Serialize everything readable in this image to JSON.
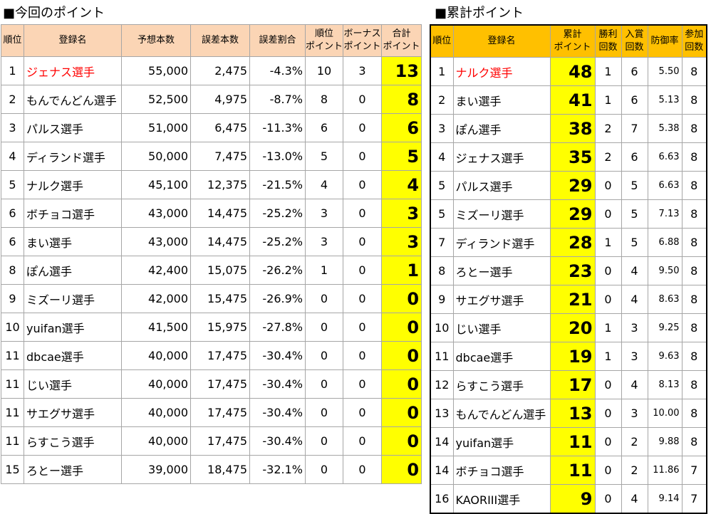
{
  "titles": {
    "current": "■今回のポイント",
    "cumulative": "■累計ポイント"
  },
  "colors": {
    "current_header_bg": "#fbd5b5",
    "cumulative_header_bg": "#ffc000",
    "points_highlight": "#ffff00",
    "highlight_name": "#ff0000"
  },
  "current_table": {
    "headers": [
      {
        "text": "順位"
      },
      {
        "text": "登録名"
      },
      {
        "text": "予想本数"
      },
      {
        "text": "誤差本数"
      },
      {
        "text": "誤差割合"
      },
      {
        "l1": "順位",
        "l2": "ポイント"
      },
      {
        "l1": "ボーナス",
        "l2": "ポイント"
      },
      {
        "l1": "合計",
        "l2": "ポイント"
      }
    ],
    "rows": [
      {
        "rank": "1",
        "name": "ジェナス選手",
        "forecast": "55,000",
        "error": "2,475",
        "ratio": "-4.3%",
        "rank_pt": "10",
        "bonus_pt": "3",
        "total_pt": "13"
      },
      {
        "rank": "2",
        "name": "もんでんどん選手",
        "forecast": "52,500",
        "error": "4,975",
        "ratio": "-8.7%",
        "rank_pt": "8",
        "bonus_pt": "0",
        "total_pt": "8"
      },
      {
        "rank": "3",
        "name": "パルス選手",
        "forecast": "51,000",
        "error": "6,475",
        "ratio": "-11.3%",
        "rank_pt": "6",
        "bonus_pt": "0",
        "total_pt": "6"
      },
      {
        "rank": "4",
        "name": "ディランド選手",
        "forecast": "50,000",
        "error": "7,475",
        "ratio": "-13.0%",
        "rank_pt": "5",
        "bonus_pt": "0",
        "total_pt": "5"
      },
      {
        "rank": "5",
        "name": "ナルク選手",
        "forecast": "45,100",
        "error": "12,375",
        "ratio": "-21.5%",
        "rank_pt": "4",
        "bonus_pt": "0",
        "total_pt": "4"
      },
      {
        "rank": "6",
        "name": "ボチョコ選手",
        "forecast": "43,000",
        "error": "14,475",
        "ratio": "-25.2%",
        "rank_pt": "3",
        "bonus_pt": "0",
        "total_pt": "3"
      },
      {
        "rank": "6",
        "name": "まい選手",
        "forecast": "43,000",
        "error": "14,475",
        "ratio": "-25.2%",
        "rank_pt": "3",
        "bonus_pt": "0",
        "total_pt": "3"
      },
      {
        "rank": "8",
        "name": "ぽん選手",
        "forecast": "42,400",
        "error": "15,075",
        "ratio": "-26.2%",
        "rank_pt": "1",
        "bonus_pt": "0",
        "total_pt": "1"
      },
      {
        "rank": "9",
        "name": "ミズーリ選手",
        "forecast": "42,000",
        "error": "15,475",
        "ratio": "-26.9%",
        "rank_pt": "0",
        "bonus_pt": "0",
        "total_pt": "0"
      },
      {
        "rank": "10",
        "name": "yuifan選手",
        "forecast": "41,500",
        "error": "15,975",
        "ratio": "-27.8%",
        "rank_pt": "0",
        "bonus_pt": "0",
        "total_pt": "0"
      },
      {
        "rank": "11",
        "name": "dbcae選手",
        "forecast": "40,000",
        "error": "17,475",
        "ratio": "-30.4%",
        "rank_pt": "0",
        "bonus_pt": "0",
        "total_pt": "0"
      },
      {
        "rank": "11",
        "name": "じい選手",
        "forecast": "40,000",
        "error": "17,475",
        "ratio": "-30.4%",
        "rank_pt": "0",
        "bonus_pt": "0",
        "total_pt": "0"
      },
      {
        "rank": "11",
        "name": "サエグサ選手",
        "forecast": "40,000",
        "error": "17,475",
        "ratio": "-30.4%",
        "rank_pt": "0",
        "bonus_pt": "0",
        "total_pt": "0"
      },
      {
        "rank": "11",
        "name": "らすこう選手",
        "forecast": "40,000",
        "error": "17,475",
        "ratio": "-30.4%",
        "rank_pt": "0",
        "bonus_pt": "0",
        "total_pt": "0"
      },
      {
        "rank": "15",
        "name": "ろとー選手",
        "forecast": "39,000",
        "error": "18,475",
        "ratio": "-32.1%",
        "rank_pt": "0",
        "bonus_pt": "0",
        "total_pt": "0"
      }
    ]
  },
  "cumulative_table": {
    "headers": [
      {
        "text": "順位"
      },
      {
        "text": "登録名"
      },
      {
        "l1": "累計",
        "l2": "ポイント"
      },
      {
        "l1": "勝利",
        "l2": "回数"
      },
      {
        "l1": "入賞",
        "l2": "回数"
      },
      {
        "text": "防御率"
      },
      {
        "l1": "参加",
        "l2": "回数"
      }
    ],
    "rows": [
      {
        "rank": "1",
        "name": "ナルク選手",
        "points": "48",
        "wins": "1",
        "places": "6",
        "era": "5.50",
        "entries": "8"
      },
      {
        "rank": "2",
        "name": "まい選手",
        "points": "41",
        "wins": "1",
        "places": "6",
        "era": "5.13",
        "entries": "8"
      },
      {
        "rank": "3",
        "name": "ぽん選手",
        "points": "38",
        "wins": "2",
        "places": "7",
        "era": "5.38",
        "entries": "8"
      },
      {
        "rank": "4",
        "name": "ジェナス選手",
        "points": "35",
        "wins": "2",
        "places": "6",
        "era": "6.63",
        "entries": "8"
      },
      {
        "rank": "5",
        "name": "パルス選手",
        "points": "29",
        "wins": "0",
        "places": "5",
        "era": "6.63",
        "entries": "8"
      },
      {
        "rank": "5",
        "name": "ミズーリ選手",
        "points": "29",
        "wins": "0",
        "places": "5",
        "era": "7.13",
        "entries": "8"
      },
      {
        "rank": "7",
        "name": "ディランド選手",
        "points": "28",
        "wins": "1",
        "places": "5",
        "era": "6.88",
        "entries": "8"
      },
      {
        "rank": "8",
        "name": "ろとー選手",
        "points": "23",
        "wins": "0",
        "places": "4",
        "era": "9.50",
        "entries": "8"
      },
      {
        "rank": "9",
        "name": "サエグサ選手",
        "points": "21",
        "wins": "0",
        "places": "4",
        "era": "8.63",
        "entries": "8"
      },
      {
        "rank": "10",
        "name": "じい選手",
        "points": "20",
        "wins": "1",
        "places": "3",
        "era": "9.25",
        "entries": "8"
      },
      {
        "rank": "11",
        "name": "dbcae選手",
        "points": "19",
        "wins": "1",
        "places": "3",
        "era": "9.63",
        "entries": "8"
      },
      {
        "rank": "12",
        "name": "らすこう選手",
        "points": "17",
        "wins": "0",
        "places": "4",
        "era": "8.13",
        "entries": "8"
      },
      {
        "rank": "13",
        "name": "もんでんどん選手",
        "points": "13",
        "wins": "0",
        "places": "3",
        "era": "10.00",
        "entries": "8"
      },
      {
        "rank": "14",
        "name": "yuifan選手",
        "points": "11",
        "wins": "0",
        "places": "2",
        "era": "9.88",
        "entries": "8"
      },
      {
        "rank": "14",
        "name": "ボチョコ選手",
        "points": "11",
        "wins": "0",
        "places": "2",
        "era": "11.86",
        "entries": "7"
      },
      {
        "rank": "16",
        "name": "KAORIII選手",
        "points": "9",
        "wins": "0",
        "places": "4",
        "era": "9.14",
        "entries": "7"
      }
    ]
  }
}
